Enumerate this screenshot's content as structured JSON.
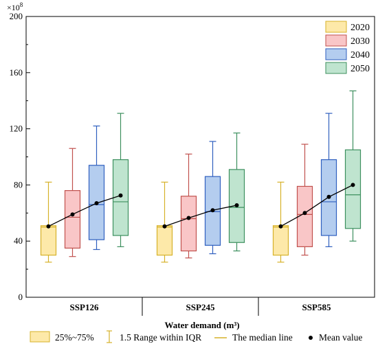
{
  "chart_data": {
    "type": "box",
    "scale_label": "×10",
    "scale_exponent": "8",
    "ylim": [
      0,
      200
    ],
    "yticks": [
      0,
      40,
      80,
      120,
      160,
      200
    ],
    "xlabel": "Water demand (m³)",
    "groups": [
      "SSP126",
      "SSP245",
      "SSP585"
    ],
    "years": [
      "2020",
      "2030",
      "2040",
      "2050"
    ],
    "year_colors": [
      {
        "fill": "#fde9a9",
        "stroke": "#d6b128"
      },
      {
        "fill": "#f9c6c7",
        "stroke": "#c0504d"
      },
      {
        "fill": "#b4cdef",
        "stroke": "#2f5fbf"
      },
      {
        "fill": "#bfe4cf",
        "stroke": "#3c8f5e"
      }
    ],
    "boxes": [
      [
        {
          "q1": 30,
          "q3": 51,
          "median": 50,
          "whisker_low": 25,
          "whisker_high": 82,
          "mean": 50.5
        },
        {
          "q1": 35,
          "q3": 76,
          "median": 57,
          "whisker_low": 29,
          "whisker_high": 106,
          "mean": 59
        },
        {
          "q1": 41,
          "q3": 94,
          "median": 66,
          "whisker_low": 34,
          "whisker_high": 122,
          "mean": 67
        },
        {
          "q1": 44,
          "q3": 98,
          "median": 68,
          "whisker_low": 36,
          "whisker_high": 131,
          "mean": 72.5
        }
      ],
      [
        {
          "q1": 30,
          "q3": 51,
          "median": 50,
          "whisker_low": 25,
          "whisker_high": 82,
          "mean": 50.5
        },
        {
          "q1": 33,
          "q3": 72,
          "median": 56,
          "whisker_low": 28,
          "whisker_high": 102,
          "mean": 56.5
        },
        {
          "q1": 37,
          "q3": 86,
          "median": 61,
          "whisker_low": 31,
          "whisker_high": 111,
          "mean": 62
        },
        {
          "q1": 39,
          "q3": 91,
          "median": 64,
          "whisker_low": 33,
          "whisker_high": 117,
          "mean": 65.5
        }
      ],
      [
        {
          "q1": 30,
          "q3": 51,
          "median": 50,
          "whisker_low": 25,
          "whisker_high": 82,
          "mean": 50.5
        },
        {
          "q1": 36,
          "q3": 79,
          "median": 59,
          "whisker_low": 30,
          "whisker_high": 109,
          "mean": 60
        },
        {
          "q1": 44,
          "q3": 98,
          "median": 68,
          "whisker_low": 36,
          "whisker_high": 131,
          "mean": 71.5
        },
        {
          "q1": 49,
          "q3": 105,
          "median": 73,
          "whisker_low": 40,
          "whisker_high": 147,
          "mean": 80
        }
      ]
    ],
    "legend_position": "top-right",
    "bottom_legend": {
      "box_label": "25%~75%",
      "whisker_label": "1.5 Range within IQR",
      "median_label": "The median line",
      "mean_label": "Mean value"
    },
    "colors": {
      "median_line": "#d6b128",
      "legend_box_fill": "#fde9a9",
      "legend_box_stroke": "#d6b128",
      "mean_line": "#000000"
    }
  }
}
